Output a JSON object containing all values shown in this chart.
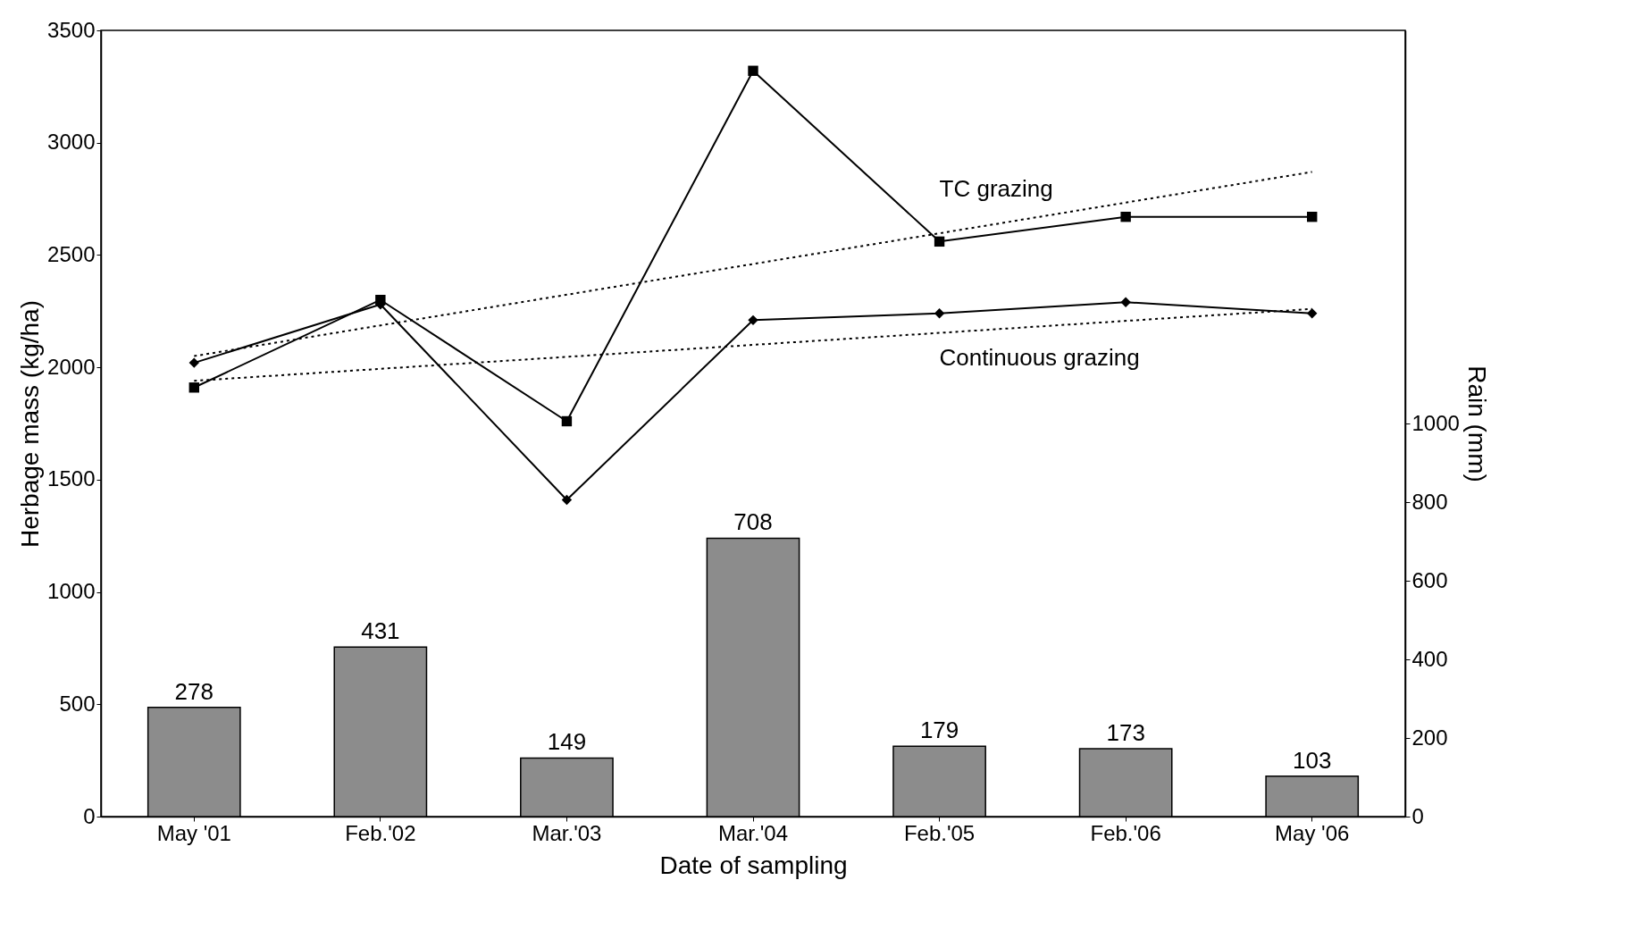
{
  "chart_data": {
    "type": "line",
    "xlabel": "Date of sampling",
    "ylabel": "Herbage mass (kg/ha)",
    "y2label": "Rain (mm)",
    "categories": [
      "May '01",
      "Feb.'02",
      "Mar.'03",
      "Mar.'04",
      "Feb.'05",
      "Feb.'06",
      "May '06"
    ],
    "ylim": [
      0,
      3500
    ],
    "yticks": [
      0,
      500,
      1000,
      1500,
      2000,
      2500,
      3000,
      3500
    ],
    "y2lim": [
      0,
      2000
    ],
    "y2ticks": [
      0,
      200,
      400,
      600,
      800,
      1000
    ],
    "grid": false,
    "series": [
      {
        "type": "bar",
        "axis": "y2",
        "color": "#8c8c8c",
        "data_labels": true,
        "values": [
          278,
          431,
          149,
          708,
          179,
          173,
          103
        ]
      },
      {
        "name": "TC grazing",
        "color": "#000000",
        "marker": "square",
        "line_style": "solid",
        "values": [
          1910,
          2300,
          1760,
          3320,
          2560,
          2670,
          2670
        ]
      },
      {
        "name": "Continuous grazing",
        "color": "#000000",
        "marker": "diamond",
        "line_style": "solid",
        "values": [
          2020,
          2280,
          1410,
          2210,
          2240,
          2290,
          2240
        ]
      },
      {
        "color": "#000000",
        "marker": "none",
        "line_style": "dotted",
        "x": [
          "May '01",
          "May '06"
        ],
        "values": [
          2050,
          2870
        ]
      },
      {
        "color": "#000000",
        "marker": "none",
        "line_style": "dotted",
        "x": [
          "May '01",
          "May '06"
        ],
        "values": [
          1940,
          2260
        ]
      }
    ]
  }
}
